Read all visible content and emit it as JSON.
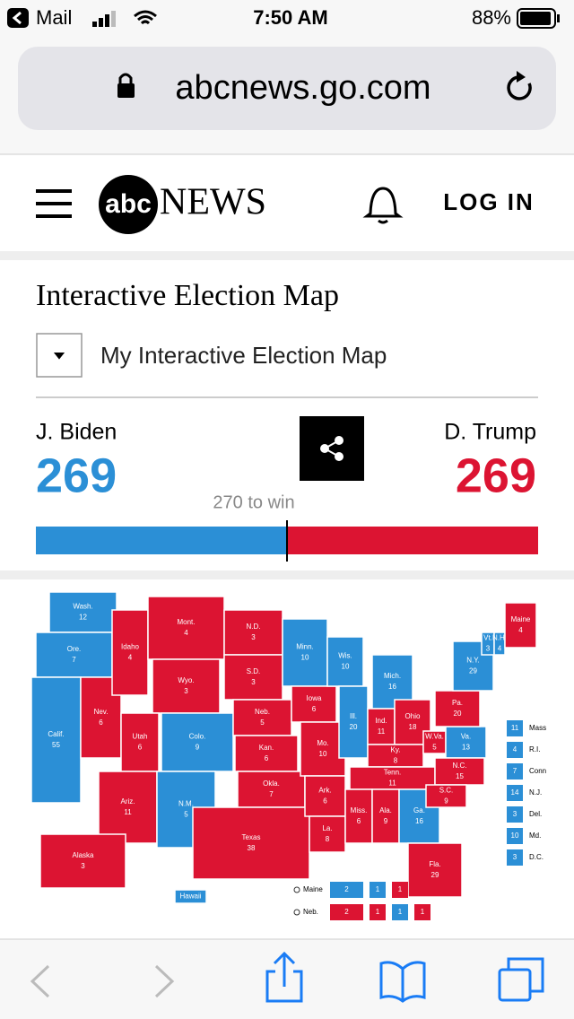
{
  "status_bar": {
    "back_app": "Mail",
    "time": "7:50 AM",
    "battery": "88%"
  },
  "url": "abcnews.go.com",
  "header": {
    "logo_abc": "abc",
    "logo_news": "NEWS",
    "login": "LOG IN"
  },
  "title": "Interactive Election Map",
  "dropdown": "My Interactive Election Map",
  "chart_data": {
    "type": "map",
    "candidates": [
      {
        "name": "J. Biden",
        "votes": 269,
        "color": "#2b8fd6"
      },
      {
        "name": "D. Trump",
        "votes": 269,
        "color": "#dc1432"
      }
    ],
    "threshold_label": "270 to win",
    "states": [
      {
        "label": "Wash.",
        "votes": 12,
        "color": "#2b8fd6"
      },
      {
        "label": "Ore.",
        "votes": 7,
        "color": "#2b8fd6"
      },
      {
        "label": "Calif.",
        "votes": 55,
        "color": "#2b8fd6"
      },
      {
        "label": "Nev.",
        "votes": 6,
        "color": "#dc1432"
      },
      {
        "label": "Idaho",
        "votes": 4,
        "color": "#dc1432"
      },
      {
        "label": "Mont.",
        "votes": 4,
        "color": "#dc1432"
      },
      {
        "label": "Wyo.",
        "votes": 3,
        "color": "#dc1432"
      },
      {
        "label": "Utah",
        "votes": 6,
        "color": "#dc1432"
      },
      {
        "label": "Colo.",
        "votes": 9,
        "color": "#2b8fd6"
      },
      {
        "label": "Ariz.",
        "votes": 11,
        "color": "#dc1432"
      },
      {
        "label": "N.M.",
        "votes": 5,
        "color": "#2b8fd6"
      },
      {
        "label": "N.D.",
        "votes": 3,
        "color": "#dc1432"
      },
      {
        "label": "S.D.",
        "votes": 3,
        "color": "#dc1432"
      },
      {
        "label": "Neb.",
        "votes": 5,
        "color": "#dc1432"
      },
      {
        "label": "Kan.",
        "votes": 6,
        "color": "#dc1432"
      },
      {
        "label": "Okla.",
        "votes": 7,
        "color": "#dc1432"
      },
      {
        "label": "Texas",
        "votes": 38,
        "color": "#dc1432"
      },
      {
        "label": "Minn.",
        "votes": 10,
        "color": "#2b8fd6"
      },
      {
        "label": "Iowa",
        "votes": 6,
        "color": "#dc1432"
      },
      {
        "label": "Mo.",
        "votes": 10,
        "color": "#dc1432"
      },
      {
        "label": "Ark.",
        "votes": 6,
        "color": "#dc1432"
      },
      {
        "label": "La.",
        "votes": 8,
        "color": "#dc1432"
      },
      {
        "label": "Wis.",
        "votes": 10,
        "color": "#2b8fd6"
      },
      {
        "label": "Ill.",
        "votes": 20,
        "color": "#2b8fd6"
      },
      {
        "label": "Mich.",
        "votes": 16,
        "color": "#2b8fd6"
      },
      {
        "label": "Ind.",
        "votes": 11,
        "color": "#dc1432"
      },
      {
        "label": "Ohio",
        "votes": 18,
        "color": "#dc1432"
      },
      {
        "label": "Ky.",
        "votes": 8,
        "color": "#dc1432"
      },
      {
        "label": "Tenn.",
        "votes": 11,
        "color": "#dc1432"
      },
      {
        "label": "Miss.",
        "votes": 6,
        "color": "#dc1432"
      },
      {
        "label": "Ala.",
        "votes": 9,
        "color": "#dc1432"
      },
      {
        "label": "Ga.",
        "votes": 16,
        "color": "#2b8fd6"
      },
      {
        "label": "Fla.",
        "votes": 29,
        "color": "#dc1432"
      },
      {
        "label": "W.Va.",
        "votes": 5,
        "color": "#dc1432"
      },
      {
        "label": "Va.",
        "votes": 13,
        "color": "#2b8fd6"
      },
      {
        "label": "N.C.",
        "votes": 15,
        "color": "#dc1432"
      },
      {
        "label": "S.C.",
        "votes": 9,
        "color": "#dc1432"
      },
      {
        "label": "Pa.",
        "votes": 20,
        "color": "#dc1432"
      },
      {
        "label": "N.Y.",
        "votes": 29,
        "color": "#2b8fd6"
      },
      {
        "label": "Vt.",
        "votes": 3,
        "color": "#2b8fd6"
      },
      {
        "label": "N.H.",
        "votes": 4,
        "color": "#2b8fd6"
      },
      {
        "label": "Maine",
        "votes": 4,
        "color": "#dc1432"
      },
      {
        "label": "Alaska",
        "votes": 3,
        "color": "#dc1432"
      },
      {
        "label": "Hawaii",
        "color": "#2b8fd6"
      }
    ],
    "small_states": [
      {
        "label": "Mass",
        "votes": 11,
        "color": "#2b8fd6"
      },
      {
        "label": "R.I.",
        "votes": 4,
        "color": "#2b8fd6"
      },
      {
        "label": "Conn",
        "votes": 7,
        "color": "#2b8fd6"
      },
      {
        "label": "N.J.",
        "votes": 14,
        "color": "#2b8fd6"
      },
      {
        "label": "Del.",
        "votes": 3,
        "color": "#2b8fd6"
      },
      {
        "label": "Md.",
        "votes": 10,
        "color": "#2b8fd6"
      },
      {
        "label": "D.C.",
        "votes": 3,
        "color": "#2b8fd6"
      }
    ],
    "splits": [
      {
        "label": "Maine",
        "districts": [
          {
            "votes": 2,
            "color": "#2b8fd6"
          },
          {
            "votes": 1,
            "color": "#2b8fd6"
          },
          {
            "votes": 1,
            "color": "#dc1432"
          }
        ]
      },
      {
        "label": "Neb.",
        "districts": [
          {
            "votes": 2,
            "color": "#dc1432"
          },
          {
            "votes": 1,
            "color": "#dc1432"
          },
          {
            "votes": 1,
            "color": "#2b8fd6"
          },
          {
            "votes": 1,
            "color": "#dc1432"
          }
        ]
      }
    ]
  }
}
